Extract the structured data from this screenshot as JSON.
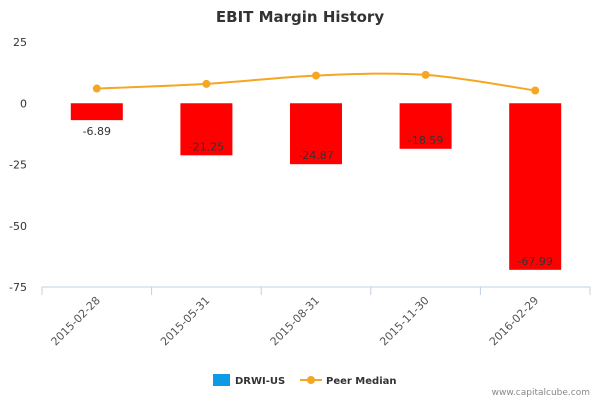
{
  "chart_data": {
    "type": "bar",
    "title": "EBIT Margin History",
    "categories": [
      "2015-02-28",
      "2015-05-31",
      "2015-08-31",
      "2015-11-30",
      "2016-02-29"
    ],
    "series": [
      {
        "name": "DRWI-US",
        "type": "bar",
        "values": [
          -6.89,
          -21.25,
          -24.87,
          -18.59,
          -67.99
        ],
        "data_labels": [
          "-6.89",
          "-21.25",
          "-24.87",
          "-18.59",
          "-67.99"
        ],
        "bar_color": "#ff0000",
        "legend_color": "#0d9be6"
      },
      {
        "name": "Peer Median",
        "type": "line",
        "values": [
          6,
          7.9,
          11.3,
          11.6,
          5.2
        ],
        "color": "#f5a623"
      }
    ],
    "ylim": [
      -75,
      25
    ],
    "yticks": [
      "25",
      "0",
      "-25",
      "-50",
      "-75"
    ],
    "ytick_values": [
      25,
      0,
      -25,
      -50,
      -75
    ],
    "grid": false,
    "legend_placement": "bottom-center"
  },
  "credit": "www.capitalcube.com"
}
